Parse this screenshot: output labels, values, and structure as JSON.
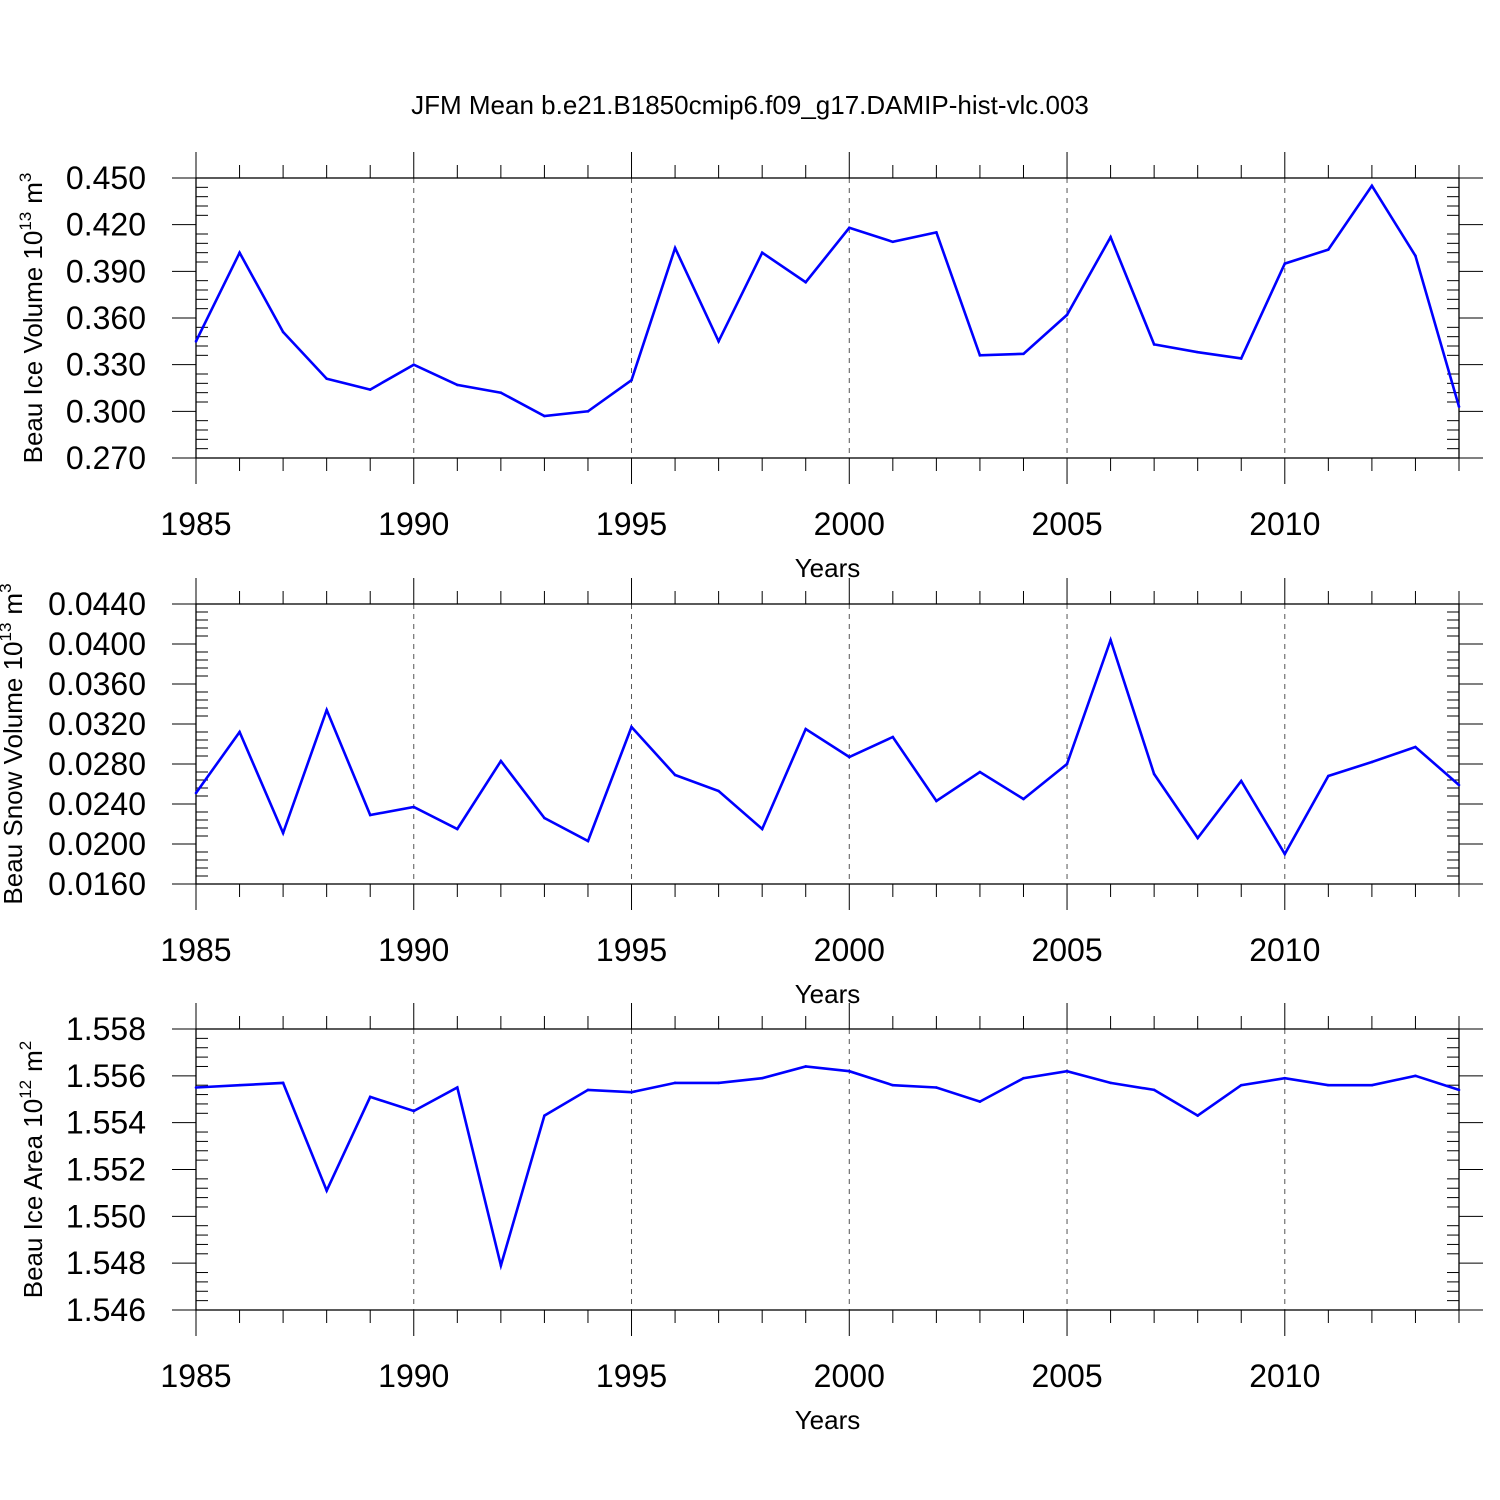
{
  "title": "JFM Mean b.e21.B1850cmip6.f09_g17.DAMIP-hist-vlc.003",
  "colors": {
    "line": "#0000ff",
    "axis": "#000000",
    "grid": "#555555",
    "background": "#ffffff"
  },
  "chart_data": [
    {
      "type": "line",
      "name": "ice-volume",
      "ylabel_main": "Beau Ice Volume 10",
      "ylabel_exp": "13",
      "ylabel_unit": "m",
      "ylabel_unit_exp": "3",
      "xlabel": "Years",
      "xlim": [
        1985,
        2014
      ],
      "ylim": [
        0.27,
        0.45
      ],
      "xticks": [
        "1985",
        "1990",
        "1995",
        "2000",
        "2005",
        "2010"
      ],
      "yticks": [
        "0.270",
        "0.300",
        "0.330",
        "0.360",
        "0.390",
        "0.420",
        "0.450"
      ],
      "grid": "vertical dashed at major x ticks",
      "x": [
        1985,
        1986,
        1987,
        1988,
        1989,
        1990,
        1991,
        1992,
        1993,
        1994,
        1995,
        1996,
        1997,
        1998,
        1999,
        2000,
        2001,
        2002,
        2003,
        2004,
        2005,
        2006,
        2007,
        2008,
        2009,
        2010,
        2011,
        2012,
        2013,
        2014
      ],
      "values": [
        0.345,
        0.402,
        0.351,
        0.321,
        0.314,
        0.33,
        0.317,
        0.312,
        0.297,
        0.3,
        0.32,
        0.405,
        0.345,
        0.402,
        0.383,
        0.418,
        0.409,
        0.415,
        0.336,
        0.337,
        0.362,
        0.412,
        0.343,
        0.338,
        0.334,
        0.395,
        0.404,
        0.445,
        0.4,
        0.303
      ]
    },
    {
      "type": "line",
      "name": "snow-volume",
      "ylabel_main": "Beau Snow Volume 10",
      "ylabel_exp": "13",
      "ylabel_unit": "m",
      "ylabel_unit_exp": "3",
      "xlabel": "Years",
      "xlim": [
        1985,
        2014
      ],
      "ylim": [
        0.016,
        0.044
      ],
      "xticks": [
        "1985",
        "1990",
        "1995",
        "2000",
        "2005",
        "2010"
      ],
      "yticks": [
        "0.0160",
        "0.0200",
        "0.0240",
        "0.0280",
        "0.0320",
        "0.0360",
        "0.0400",
        "0.0440"
      ],
      "grid": "vertical dashed at major x ticks",
      "x": [
        1985,
        1986,
        1987,
        1988,
        1989,
        1990,
        1991,
        1992,
        1993,
        1994,
        1995,
        1996,
        1997,
        1998,
        1999,
        2000,
        2001,
        2002,
        2003,
        2004,
        2005,
        2006,
        2007,
        2008,
        2009,
        2010,
        2011,
        2012,
        2013,
        2014
      ],
      "values": [
        0.0251,
        0.0312,
        0.0211,
        0.0334,
        0.0229,
        0.0237,
        0.0215,
        0.0283,
        0.0226,
        0.0203,
        0.0317,
        0.0269,
        0.0253,
        0.0215,
        0.0315,
        0.0287,
        0.0307,
        0.0243,
        0.0272,
        0.0245,
        0.028,
        0.0404,
        0.027,
        0.0206,
        0.0263,
        0.019,
        0.0268,
        0.0282,
        0.0297,
        0.0259
      ]
    },
    {
      "type": "line",
      "name": "ice-area",
      "ylabel_main": "Beau Ice Area 10",
      "ylabel_exp": "12",
      "ylabel_unit": "m",
      "ylabel_unit_exp": "2",
      "xlabel": "Years",
      "xlim": [
        1985,
        2014
      ],
      "ylim": [
        1.546,
        1.558
      ],
      "xticks": [
        "1985",
        "1990",
        "1995",
        "2000",
        "2005",
        "2010"
      ],
      "yticks": [
        "1.546",
        "1.548",
        "1.550",
        "1.552",
        "1.554",
        "1.556",
        "1.558"
      ],
      "grid": "vertical dashed at major x ticks",
      "x": [
        1985,
        1986,
        1987,
        1988,
        1989,
        1990,
        1991,
        1992,
        1993,
        1994,
        1995,
        1996,
        1997,
        1998,
        1999,
        2000,
        2001,
        2002,
        2003,
        2004,
        2005,
        2006,
        2007,
        2008,
        2009,
        2010,
        2011,
        2012,
        2013,
        2014
      ],
      "values": [
        1.5555,
        1.5556,
        1.5557,
        1.5511,
        1.5551,
        1.5545,
        1.5555,
        1.5479,
        1.5543,
        1.5554,
        1.5553,
        1.5557,
        1.5557,
        1.5559,
        1.5564,
        1.5562,
        1.5556,
        1.5555,
        1.5549,
        1.5559,
        1.5562,
        1.5557,
        1.5554,
        1.5543,
        1.5556,
        1.5559,
        1.5556,
        1.5556,
        1.556,
        1.5554
      ]
    }
  ]
}
